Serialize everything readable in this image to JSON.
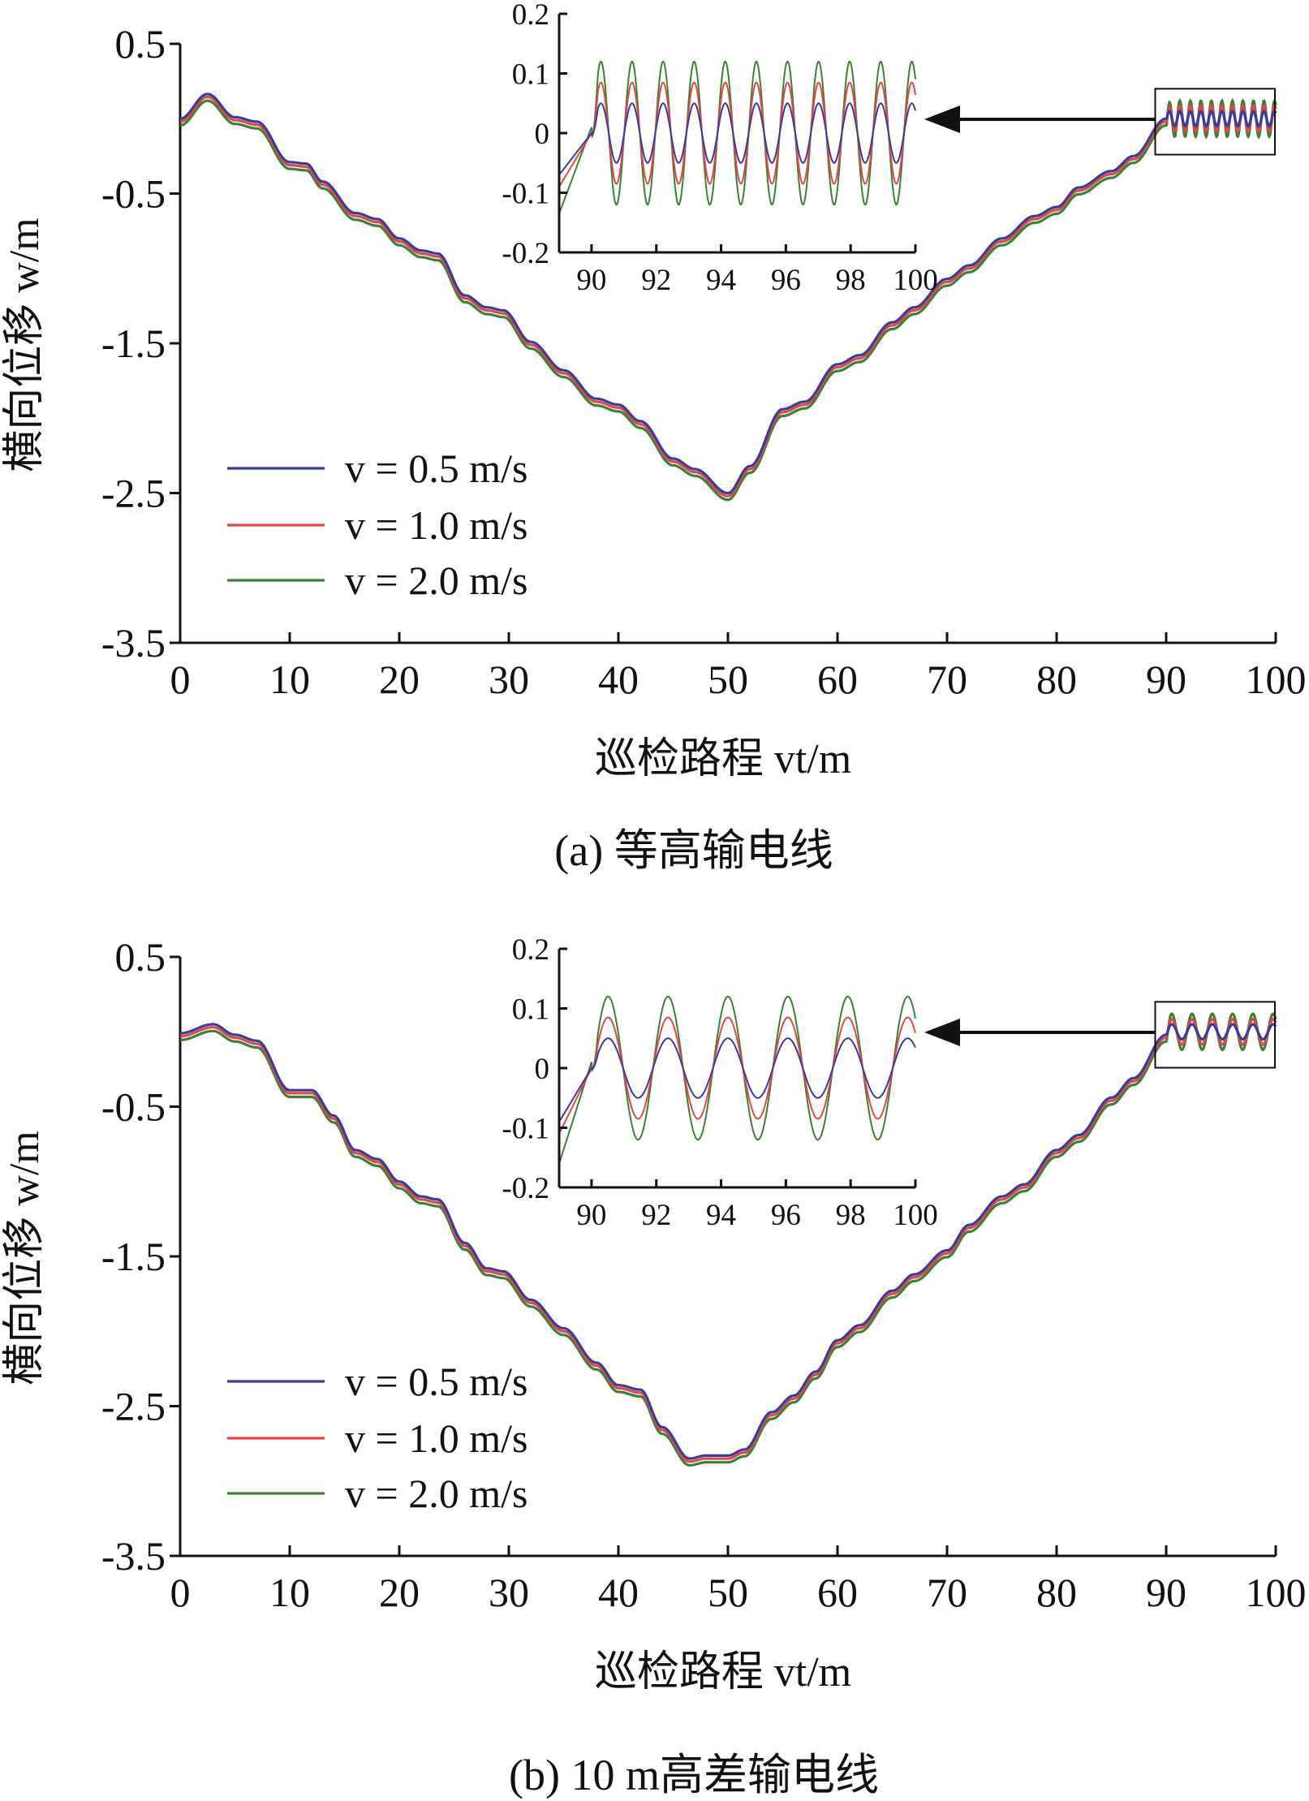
{
  "colors": {
    "v05": "#3b3b9c",
    "v10": "#e04848",
    "v20": "#3d8035",
    "axis": "#111111"
  },
  "chart_data": [
    {
      "type": "line",
      "caption": "(a) 等高输电线",
      "xlabel": "巡检路程 vt/m",
      "ylabel": "横向位移 w/m",
      "xlim": [
        0,
        100
      ],
      "ylim": [
        -3.5,
        0.5
      ],
      "xticks": [
        "0",
        "10",
        "20",
        "30",
        "40",
        "50",
        "60",
        "70",
        "80",
        "90",
        "100"
      ],
      "yticks": [
        "0.5",
        "-0.5",
        "-1.5",
        "-2.5",
        "-3.5"
      ],
      "legend": "center-left",
      "base_v05": [
        [
          0,
          0
        ],
        [
          2.5,
          0.165
        ],
        [
          5,
          0.01
        ],
        [
          7,
          -0.02
        ],
        [
          10,
          -0.29
        ],
        [
          11.5,
          -0.3
        ],
        [
          13,
          -0.42
        ],
        [
          16,
          -0.63
        ],
        [
          18,
          -0.67
        ],
        [
          20,
          -0.8
        ],
        [
          22,
          -0.88
        ],
        [
          23.5,
          -0.9
        ],
        [
          26,
          -1.18
        ],
        [
          28,
          -1.26
        ],
        [
          29.5,
          -1.28
        ],
        [
          32,
          -1.49
        ],
        [
          35,
          -1.68
        ],
        [
          38,
          -1.87
        ],
        [
          40,
          -1.91
        ],
        [
          42,
          -2.02
        ],
        [
          45,
          -2.27
        ],
        [
          47,
          -2.34
        ],
        [
          50,
          -2.5
        ],
        [
          52,
          -2.32
        ],
        [
          55,
          -1.94
        ],
        [
          57,
          -1.89
        ],
        [
          60,
          -1.64
        ],
        [
          62,
          -1.58
        ],
        [
          65,
          -1.36
        ],
        [
          67,
          -1.26
        ],
        [
          70,
          -1.07
        ],
        [
          72,
          -0.98
        ],
        [
          75,
          -0.8
        ],
        [
          78,
          -0.65
        ],
        [
          80,
          -0.59
        ],
        [
          82,
          -0.46
        ],
        [
          85,
          -0.35
        ],
        [
          87,
          -0.25
        ],
        [
          90,
          0
        ]
      ],
      "series": [
        {
          "name": "v = 0.5 m/s",
          "offset": 0,
          "amplitude": 0.05,
          "inset_start": -0.07
        },
        {
          "name": "v = 1.0 m/s",
          "offset": -0.02,
          "amplitude": 0.085,
          "inset_start": -0.09
        },
        {
          "name": "v = 2.0 m/s",
          "offset": -0.045,
          "amplitude": 0.12,
          "inset_start": -0.135
        }
      ],
      "oscillation_period": 0.96,
      "inset": {
        "xlim": [
          89,
          100
        ],
        "ylim": [
          -0.2,
          0.2
        ],
        "xticks": [
          "90",
          "92",
          "94",
          "96",
          "98",
          "100"
        ],
        "yticks": [
          "0.2",
          "0.1",
          "0",
          "-0.1",
          "-0.2"
        ]
      }
    },
    {
      "type": "line",
      "caption": "(b) 10 m高差输电线",
      "xlabel": "巡检路程 vt/m",
      "ylabel": "横向位移 w/m",
      "xlim": [
        0,
        100
      ],
      "ylim": [
        -3.5,
        0.5
      ],
      "xticks": [
        "0",
        "10",
        "20",
        "30",
        "40",
        "50",
        "60",
        "70",
        "80",
        "90",
        "100"
      ],
      "yticks": [
        "0.5",
        "-0.5",
        "-1.5",
        "-2.5",
        "-3.5"
      ],
      "legend": "center-left",
      "base_v05": [
        [
          0,
          -0.01
        ],
        [
          3,
          0.05
        ],
        [
          5,
          -0.02
        ],
        [
          7,
          -0.06
        ],
        [
          10,
          -0.39
        ],
        [
          12,
          -0.39
        ],
        [
          14,
          -0.56
        ],
        [
          16,
          -0.79
        ],
        [
          18,
          -0.85
        ],
        [
          20,
          -1.0
        ],
        [
          22,
          -1.1
        ],
        [
          23.5,
          -1.12
        ],
        [
          26,
          -1.41
        ],
        [
          28,
          -1.58
        ],
        [
          29.5,
          -1.6
        ],
        [
          32,
          -1.79
        ],
        [
          35,
          -1.98
        ],
        [
          38,
          -2.21
        ],
        [
          40,
          -2.36
        ],
        [
          42,
          -2.39
        ],
        [
          44,
          -2.64
        ],
        [
          46.5,
          -2.85
        ],
        [
          48,
          -2.83
        ],
        [
          50,
          -2.83
        ],
        [
          51.5,
          -2.79
        ],
        [
          54,
          -2.54
        ],
        [
          56,
          -2.43
        ],
        [
          58,
          -2.27
        ],
        [
          60,
          -2.06
        ],
        [
          62,
          -1.96
        ],
        [
          65,
          -1.73
        ],
        [
          67,
          -1.62
        ],
        [
          70,
          -1.46
        ],
        [
          72,
          -1.29
        ],
        [
          75,
          -1.1
        ],
        [
          77,
          -1.02
        ],
        [
          80,
          -0.79
        ],
        [
          82,
          -0.69
        ],
        [
          85,
          -0.44
        ],
        [
          87,
          -0.31
        ],
        [
          90,
          -0.02
        ]
      ],
      "series": [
        {
          "name": "v = 0.5 m/s",
          "offset": 0,
          "amplitude": 0.05,
          "inset_start": -0.09
        },
        {
          "name": "v = 1.0 m/s",
          "offset": -0.02,
          "amplitude": 0.085,
          "inset_start": -0.11
        },
        {
          "name": "v = 2.0 m/s",
          "offset": -0.045,
          "amplitude": 0.12,
          "inset_start": -0.16
        }
      ],
      "oscillation_period": 1.85,
      "inset": {
        "xlim": [
          89,
          100
        ],
        "ylim": [
          -0.2,
          0.2
        ],
        "xticks": [
          "90",
          "92",
          "94",
          "96",
          "98",
          "100"
        ],
        "yticks": [
          "0.2",
          "0.1",
          "0",
          "-0.1",
          "-0.2"
        ]
      }
    }
  ]
}
